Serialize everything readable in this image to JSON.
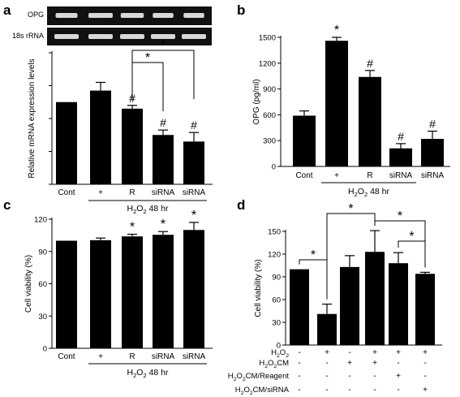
{
  "chart_data": [
    {
      "panel": "a",
      "type": "bar",
      "gel": {
        "bands": [
          "OPG",
          "18s rRNA"
        ]
      },
      "categories": [
        "Cont",
        "+",
        "R",
        "siRNA",
        "siRNA"
      ],
      "values": [
        1.0,
        1.14,
        0.92,
        0.6,
        0.52
      ],
      "errors": [
        0.0,
        0.1,
        0.04,
        0.06,
        0.11
      ],
      "marks": [
        "",
        "",
        "#",
        "#",
        "#"
      ],
      "ylabel": "Relative mRNA expression levels",
      "ylim": [
        0,
        1.6
      ],
      "yticks": [
        0,
        0.4,
        0.8,
        1.2,
        1.6
      ],
      "yticklabels": [
        "",
        "",
        "",
        "",
        ""
      ],
      "group_label": {
        "pre": "H",
        "sub": "2",
        "mid": "O",
        "sub2": "2",
        "post": " 48 hr"
      },
      "brackets": [
        {
          "from": 2,
          "to": 3,
          "label": "*"
        },
        {
          "from": 2,
          "to": 4,
          "label": "*"
        }
      ]
    },
    {
      "panel": "b",
      "type": "bar",
      "categories": [
        "Cont",
        "+",
        "R",
        "siRNA",
        "siRNA"
      ],
      "values": [
        590,
        1460,
        1040,
        210,
        320
      ],
      "errors": [
        55,
        40,
        75,
        55,
        90
      ],
      "marks": [
        "",
        "*",
        "#",
        "#",
        "#"
      ],
      "ylabel": "OPG (pg/ml)",
      "ylim": [
        0,
        1500
      ],
      "yticks": [
        0,
        300,
        600,
        900,
        1200,
        1500
      ],
      "yticklabels": [
        "0",
        "300",
        "600",
        "900",
        "1200",
        "1500"
      ],
      "group_label": {
        "pre": "H",
        "sub": "2",
        "mid": "O",
        "sub2": "2",
        "post": " 48 hr"
      }
    },
    {
      "panel": "c",
      "type": "bar",
      "categories": [
        "Cont",
        "+",
        "R",
        "siRNA",
        "siRNA"
      ],
      "values": [
        100,
        100.5,
        104,
        105.5,
        110
      ],
      "errors": [
        0,
        2,
        2,
        3,
        7
      ],
      "marks": [
        "",
        "",
        "*",
        "*",
        "*"
      ],
      "ylabel": "Cell viability (%)",
      "ylim": [
        0,
        120
      ],
      "yticks": [
        0,
        30,
        60,
        90,
        120
      ],
      "yticklabels": [
        "0",
        "30",
        "60",
        "90",
        "120"
      ],
      "group_label": {
        "pre": "H",
        "sub": "2",
        "mid": "O",
        "sub2": "2",
        "post": " 48 hr"
      }
    },
    {
      "panel": "d",
      "type": "bar",
      "values": [
        100,
        41,
        103,
        123,
        108,
        94
      ],
      "errors": [
        0,
        13,
        15,
        28,
        14,
        2
      ],
      "ylabel": "Cell viability (%)",
      "ylim": [
        0,
        150
      ],
      "yticks": [
        0,
        30,
        60,
        90,
        120,
        150
      ],
      "yticklabels": [
        "0",
        "30",
        "60",
        "90",
        "120",
        "150"
      ],
      "brackets": [
        {
          "from": 0,
          "to": 1,
          "label": "*"
        },
        {
          "from": 1,
          "to": 3,
          "label": "*"
        },
        {
          "from": 3,
          "to": 5,
          "label": "*"
        },
        {
          "from": 4,
          "to": 5,
          "label": "*"
        }
      ],
      "treatment_rows": [
        {
          "pre": "H",
          "sub": "2",
          "mid": "O",
          "sub2": "2",
          "post": "",
          "marks": [
            "-",
            "+",
            "-",
            "+",
            "+",
            "+"
          ]
        },
        {
          "pre": "H",
          "sub": "2",
          "mid": "O",
          "sub2": "2",
          "post": "CM",
          "marks": [
            "-",
            "-",
            "+",
            "+",
            "-",
            "-"
          ]
        },
        {
          "pre": "H",
          "sub": "2",
          "mid": "O",
          "sub2": "2",
          "post": "CM/Reagent",
          "marks": [
            "-",
            "-",
            "-",
            "-",
            "+",
            "-"
          ]
        },
        {
          "pre": "H",
          "sub": "2",
          "mid": "O",
          "sub2": "2",
          "post": "CM/siRNA",
          "marks": [
            "-",
            "-",
            "-",
            "-",
            "-",
            "+"
          ]
        }
      ]
    }
  ],
  "panel_letters": [
    "a",
    "b",
    "c",
    "d"
  ]
}
